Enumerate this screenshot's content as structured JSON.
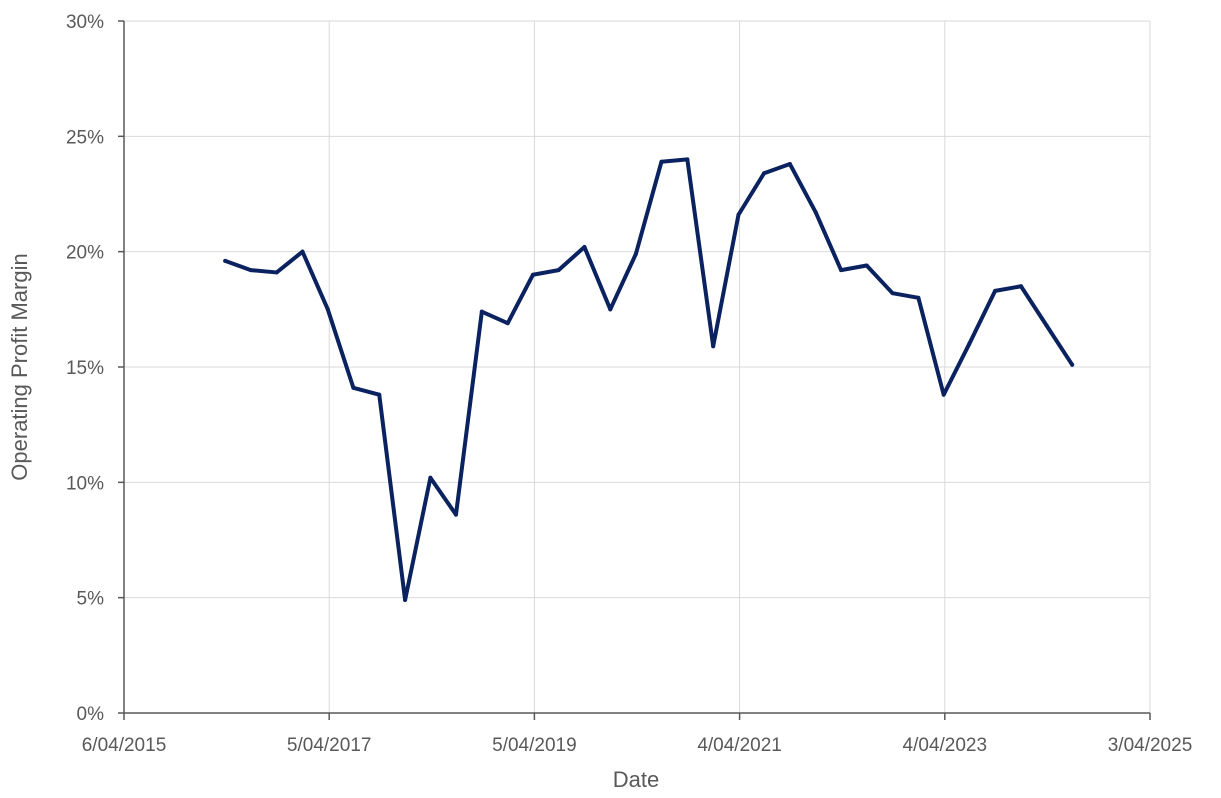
{
  "chart_data": {
    "type": "line",
    "xlabel": "Date",
    "ylabel": "Operating Profit Margin",
    "x_tick_labels": [
      "6/04/2015",
      "5/04/2017",
      "5/04/2019",
      "4/04/2021",
      "4/04/2023",
      "3/04/2025"
    ],
    "x_ticks": [
      "2015-04-06",
      "2017-04-05",
      "2019-04-05",
      "2021-04-04",
      "2023-04-04",
      "2025-04-03"
    ],
    "xlim": [
      "2015-04-06",
      "2025-04-03"
    ],
    "y_tick_labels": [
      "0%",
      "5%",
      "10%",
      "15%",
      "20%",
      "25%",
      "30%"
    ],
    "y_ticks": [
      0,
      5,
      10,
      15,
      20,
      25,
      30
    ],
    "ylim": [
      0,
      30
    ],
    "y_unit": "%",
    "grid": true,
    "legend": "none",
    "series": [
      {
        "color": "#0b2260",
        "points": [
          {
            "x": "2016-03-31",
            "y": 19.6
          },
          {
            "x": "2016-06-30",
            "y": 19.2
          },
          {
            "x": "2016-09-30",
            "y": 19.1
          },
          {
            "x": "2016-12-31",
            "y": 20.0
          },
          {
            "x": "2017-03-31",
            "y": 17.5
          },
          {
            "x": "2017-06-30",
            "y": 14.1
          },
          {
            "x": "2017-09-30",
            "y": 13.8
          },
          {
            "x": "2017-12-31",
            "y": 4.9
          },
          {
            "x": "2018-03-31",
            "y": 10.2
          },
          {
            "x": "2018-06-30",
            "y": 8.6
          },
          {
            "x": "2018-09-30",
            "y": 17.4
          },
          {
            "x": "2018-12-31",
            "y": 16.9
          },
          {
            "x": "2019-03-31",
            "y": 19.0
          },
          {
            "x": "2019-06-30",
            "y": 19.2
          },
          {
            "x": "2019-09-30",
            "y": 20.2
          },
          {
            "x": "2019-12-31",
            "y": 17.5
          },
          {
            "x": "2020-03-31",
            "y": 19.9
          },
          {
            "x": "2020-06-30",
            "y": 23.9
          },
          {
            "x": "2020-09-30",
            "y": 24.0
          },
          {
            "x": "2020-12-31",
            "y": 15.9
          },
          {
            "x": "2021-03-31",
            "y": 21.6
          },
          {
            "x": "2021-06-30",
            "y": 23.4
          },
          {
            "x": "2021-09-30",
            "y": 23.8
          },
          {
            "x": "2021-12-31",
            "y": 21.7
          },
          {
            "x": "2022-03-31",
            "y": 19.2
          },
          {
            "x": "2022-06-30",
            "y": 19.4
          },
          {
            "x": "2022-09-30",
            "y": 18.2
          },
          {
            "x": "2022-12-31",
            "y": 18.0
          },
          {
            "x": "2023-03-31",
            "y": 13.8
          },
          {
            "x": "2023-06-30",
            "y": 16.0
          },
          {
            "x": "2023-09-30",
            "y": 18.3
          },
          {
            "x": "2023-12-31",
            "y": 18.5
          },
          {
            "x": "2024-03-31",
            "y": 16.8
          },
          {
            "x": "2024-06-30",
            "y": 15.1
          }
        ]
      }
    ]
  },
  "colors": {
    "line": "#0b2260",
    "gridline": "#d9d9d9",
    "axis": "#595959",
    "text": "#595959"
  }
}
